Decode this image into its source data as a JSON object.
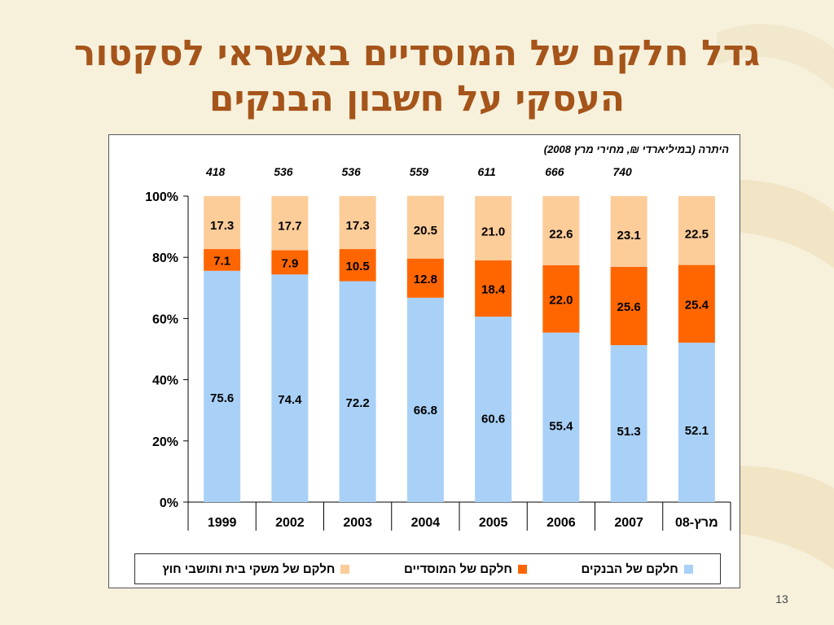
{
  "slide": {
    "title_line1": "גדל חלקם של המוסדיים באשראי לסקטור",
    "title_line2": "העסקי על חשבון הבנקים",
    "page_number": "13"
  },
  "colors": {
    "title": "#a5541a",
    "banks": "#a9d1f7",
    "institutional": "#ff6600",
    "households": "#fccc99",
    "background": "#f7f1dc"
  },
  "chart_data": {
    "type": "bar",
    "stacked": "percent",
    "subtitle": "היתרה (במיליארדי ₪, מחירי מרץ 2008)",
    "categories": [
      "1999",
      "2002",
      "2003",
      "2004",
      "2005",
      "2006",
      "2007",
      "מרץ-08"
    ],
    "totals": [
      "418",
      "536",
      "536",
      "559",
      "611",
      "666",
      "740",
      "-"
    ],
    "ylim": [
      0,
      100
    ],
    "y_ticks": [
      "0%",
      "20%",
      "40%",
      "60%",
      "80%",
      "100%"
    ],
    "series": [
      {
        "name": "חלקם של הבנקים",
        "color": "#a9d1f7",
        "values": [
          75.6,
          74.4,
          72.2,
          66.8,
          60.6,
          55.4,
          51.3,
          52.1
        ]
      },
      {
        "name": "חלקם של המוסדיים",
        "color": "#ff6600",
        "values": [
          7.1,
          7.9,
          10.5,
          12.8,
          18.4,
          22.0,
          25.6,
          25.4
        ]
      },
      {
        "name": "חלקם של משקי בית ותושבי חוץ",
        "color": "#fccc99",
        "values": [
          17.3,
          17.7,
          17.3,
          20.5,
          21.0,
          22.6,
          23.1,
          22.5
        ]
      }
    ],
    "legend_position": "bottom",
    "grid": false
  }
}
